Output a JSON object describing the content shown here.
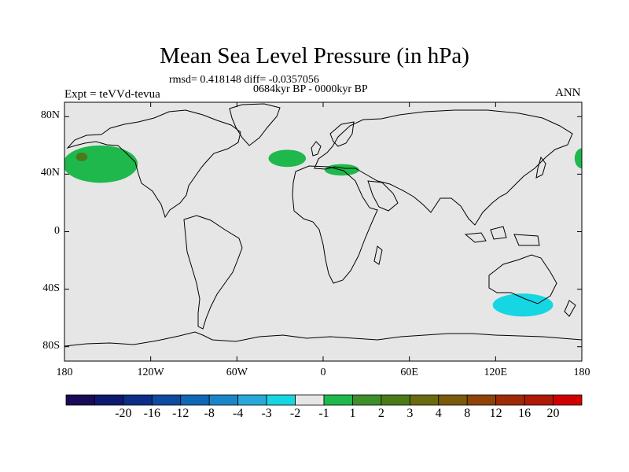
{
  "title": "Mean Sea Level Pressure (in hPa)",
  "stats_line": "rmsd= 0.418148 diff= -0.0357056",
  "period_line": "0684kyr BP - 0000kyr BP",
  "experiment": "Expt = teVVd-tevua",
  "season": "ANN",
  "lat_labels": [
    "80N",
    "40N",
    "0",
    "40S",
    "80S"
  ],
  "lon_labels": [
    "180",
    "120W",
    "60W",
    "0",
    "60E",
    "120E",
    "180"
  ],
  "colorbar": {
    "colors": [
      "#1b0a57",
      "#0b1a6e",
      "#0c2f86",
      "#0e4aa0",
      "#1266b6",
      "#1a86c8",
      "#28a8d8",
      "#16d6e3",
      "#e6e6e6",
      "#1fb84c",
      "#3c8f2a",
      "#4c7a1a",
      "#6a6a10",
      "#7a5a0c",
      "#8e4409",
      "#9e2a08",
      "#b01808",
      "#d00000"
    ],
    "labels": [
      "-20",
      "-16",
      "-12",
      "-8",
      "-4",
      "-3",
      "-2",
      "-1",
      "1",
      "2",
      "3",
      "4",
      "8",
      "12",
      "16",
      "20"
    ]
  },
  "anomalies": [
    {
      "name": "north-pacific",
      "lon_center": -155,
      "lat_center": 47,
      "lon_radius": 26,
      "lat_radius": 13,
      "color": "#1fb84c"
    },
    {
      "name": "north-pacific-core",
      "lon_center": -168,
      "lat_center": 52,
      "lon_radius": 4,
      "lat_radius": 3,
      "color": "#4c7a1a"
    },
    {
      "name": "north-atlantic",
      "lon_center": -25,
      "lat_center": 51,
      "lon_radius": 13,
      "lat_radius": 6,
      "color": "#1fb84c"
    },
    {
      "name": "europe",
      "lon_center": 13,
      "lat_center": 43,
      "lon_radius": 12,
      "lat_radius": 4,
      "color": "#1fb84c"
    },
    {
      "name": "dateline-east",
      "lon_center": 180,
      "lat_center": 51,
      "lon_radius": 5,
      "lat_radius": 7,
      "color": "#1fb84c"
    },
    {
      "name": "southern-ocean",
      "lon_center": 139,
      "lat_center": -51,
      "lon_radius": 21,
      "lat_radius": 8,
      "color": "#16d6e3"
    }
  ]
}
